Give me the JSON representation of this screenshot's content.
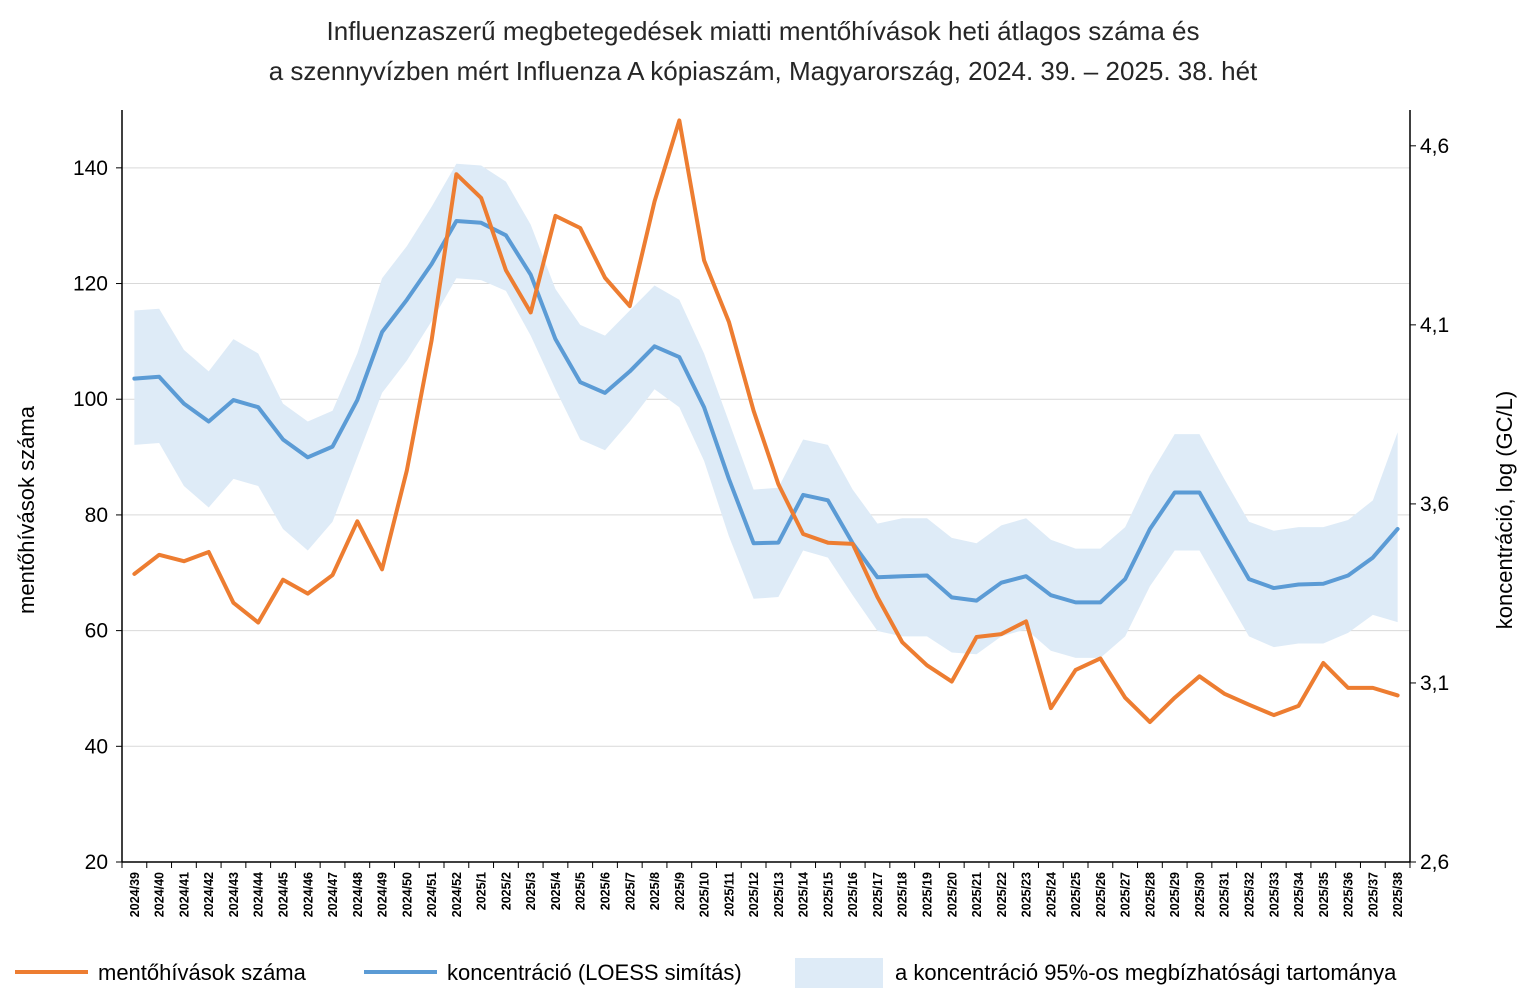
{
  "chart_data": {
    "type": "line",
    "title_lines": [
      "Influenzaszerű megbetegedések miatti mentőhívások heti átlagos száma és",
      "a szennyvízben mért Influenza A kópiaszám, Magyarország, 2024. 39. – 2025. 38. hét"
    ],
    "ylabel": "mentőhívások száma",
    "y2label": "koncentráció, log (GC/L)",
    "ylim": [
      20,
      150
    ],
    "yticks": [
      20,
      40,
      60,
      80,
      100,
      120,
      140
    ],
    "y2lim": [
      2.6,
      4.7
    ],
    "y2ticks": [
      2.6,
      3.1,
      3.6,
      4.1,
      4.6
    ],
    "y2tick_labels": [
      "2,6",
      "3,1",
      "3,6",
      "4,1",
      "4,6"
    ],
    "grid": true,
    "legend_position": "bottom",
    "categories": [
      "2024/39",
      "2024/40",
      "2024/41",
      "2024/42",
      "2024/43",
      "2024/44",
      "2024/45",
      "2024/46",
      "2024/47",
      "2024/48",
      "2024/49",
      "2024/50",
      "2024/51",
      "2024/52",
      "2025/1",
      "2025/2",
      "2025/3",
      "2025/4",
      "2025/5",
      "2025/6",
      "2025/7",
      "2025/8",
      "2025/9",
      "2025/10",
      "2025/11",
      "2025/12",
      "2025/13",
      "2025/14",
      "2025/15",
      "2025/16",
      "2025/17",
      "2025/18",
      "2025/19",
      "2025/20",
      "2025/21",
      "2025/22",
      "2025/23",
      "2025/24",
      "2025/25",
      "2025/26",
      "2025/27",
      "2025/28",
      "2025/29",
      "2025/30",
      "2025/31",
      "2025/32",
      "2025/33",
      "2025/34",
      "2025/35",
      "2025/36",
      "2025/37",
      "2025/38"
    ],
    "series": [
      {
        "name": "mentőhívások száma",
        "axis": "left",
        "color": "#ED7D31",
        "values": [
          69.8,
          73.1,
          72.0,
          73.6,
          64.8,
          61.4,
          68.8,
          66.4,
          69.6,
          78.9,
          70.6,
          87.7,
          110.2,
          138.9,
          134.8,
          122.3,
          115.0,
          131.7,
          129.6,
          121.0,
          116.1,
          134.2,
          148.2,
          124.0,
          113.4,
          98.0,
          85.3,
          76.7,
          75.2,
          75.0,
          65.8,
          58.0,
          54.0,
          51.2,
          58.9,
          59.4,
          61.6,
          46.6,
          53.2,
          55.2,
          48.4,
          44.2,
          48.4,
          52.1,
          49.1,
          47.2,
          45.4,
          47.0,
          54.4,
          50.1,
          50.1,
          48.8
        ]
      },
      {
        "name": "koncentráció (LOESS simítás)",
        "axis": "right",
        "color": "#5B9BD5",
        "values": [
          3.95,
          3.955,
          3.88,
          3.83,
          3.89,
          3.87,
          3.78,
          3.73,
          3.76,
          3.89,
          4.08,
          4.17,
          4.27,
          4.39,
          4.385,
          4.35,
          4.24,
          4.06,
          3.94,
          3.91,
          3.97,
          4.04,
          4.01,
          3.87,
          3.67,
          3.49,
          3.492,
          3.625,
          3.61,
          3.49,
          3.395,
          3.398,
          3.4,
          3.339,
          3.33,
          3.38,
          3.398,
          3.345,
          3.325,
          3.325,
          3.39,
          3.53,
          3.632,
          3.632,
          3.51,
          3.39,
          3.365,
          3.375,
          3.377,
          3.4,
          3.45,
          3.53
        ]
      }
    ],
    "band": {
      "name": "a koncentráció 95%-os megbízhatósági tartománya",
      "axis": "right",
      "color": "#DEEBF7",
      "upper": [
        4.14,
        4.145,
        4.03,
        3.97,
        4.06,
        4.02,
        3.88,
        3.83,
        3.86,
        4.02,
        4.23,
        4.32,
        4.43,
        4.55,
        4.545,
        4.5,
        4.38,
        4.2,
        4.1,
        4.07,
        4.14,
        4.21,
        4.17,
        4.02,
        3.83,
        3.64,
        3.645,
        3.78,
        3.765,
        3.64,
        3.545,
        3.56,
        3.56,
        3.505,
        3.49,
        3.54,
        3.56,
        3.5,
        3.475,
        3.475,
        3.535,
        3.68,
        3.795,
        3.795,
        3.67,
        3.55,
        3.525,
        3.535,
        3.535,
        3.555,
        3.61,
        3.8
      ],
      "lower": [
        3.765,
        3.77,
        3.65,
        3.59,
        3.67,
        3.65,
        3.53,
        3.47,
        3.55,
        3.73,
        3.91,
        4.0,
        4.11,
        4.23,
        4.225,
        4.195,
        4.07,
        3.92,
        3.78,
        3.75,
        3.83,
        3.92,
        3.87,
        3.72,
        3.51,
        3.335,
        3.34,
        3.47,
        3.45,
        3.345,
        3.245,
        3.23,
        3.23,
        3.185,
        3.18,
        3.23,
        3.25,
        3.19,
        3.17,
        3.17,
        3.23,
        3.37,
        3.47,
        3.47,
        3.35,
        3.23,
        3.2,
        3.21,
        3.21,
        3.24,
        3.29,
        3.27
      ]
    }
  }
}
